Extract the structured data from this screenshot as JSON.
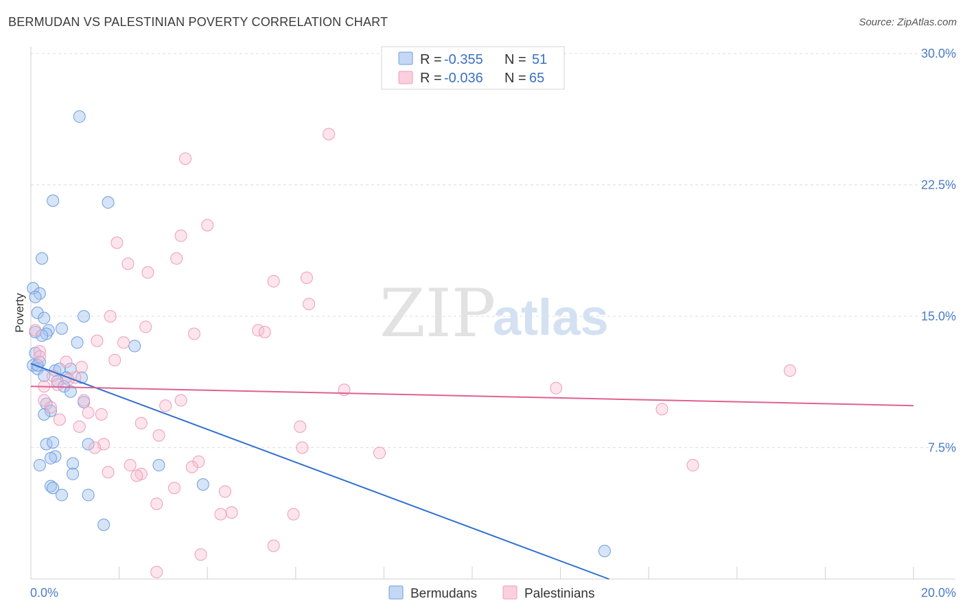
{
  "title": "BERMUDAN VS PALESTINIAN POVERTY CORRELATION CHART",
  "source": "Source: ZipAtlas.com",
  "watermark": {
    "part1": "ZIP",
    "part2": "atlas"
  },
  "legend": {
    "r_label": "R =",
    "n_label": "N =",
    "rows": [
      {
        "r": "-0.355",
        "n": "51",
        "color": "#6c9de0"
      },
      {
        "r": "-0.036",
        "n": "65",
        "color": "#f09ab8"
      }
    ]
  },
  "chart_data": {
    "type": "scatter",
    "title": "BERMUDAN VS PALESTINIAN POVERTY CORRELATION CHART",
    "ylabel": "Poverty",
    "xlabel": "",
    "xlim": [
      0,
      20
    ],
    "ylim": [
      0,
      30
    ],
    "x_tick_labels": [
      "0.0%",
      "20.0%"
    ],
    "y_ticks": [
      7.5,
      15.0,
      22.5,
      30.0
    ],
    "y_tick_labels": [
      "7.5%",
      "15.0%",
      "22.5%",
      "30.0%"
    ],
    "grid": "horizontal dashed",
    "legend_position": "top-center",
    "series": [
      {
        "name": "Bermudans",
        "color": "#6c9de0",
        "trend": {
          "x": [
            0.0,
            13.1
          ],
          "y": [
            12.3,
            0.0
          ]
        },
        "points": [
          [
            1.1,
            26.4
          ],
          [
            0.5,
            21.6
          ],
          [
            1.75,
            21.5
          ],
          [
            0.25,
            18.3
          ],
          [
            0.05,
            16.6
          ],
          [
            0.2,
            16.3
          ],
          [
            0.1,
            16.1
          ],
          [
            0.15,
            15.2
          ],
          [
            0.3,
            14.9
          ],
          [
            1.2,
            15.0
          ],
          [
            0.4,
            14.2
          ],
          [
            0.7,
            14.3
          ],
          [
            0.1,
            14.1
          ],
          [
            0.35,
            14.0
          ],
          [
            0.25,
            13.9
          ],
          [
            1.05,
            13.5
          ],
          [
            2.35,
            13.3
          ],
          [
            0.1,
            12.9
          ],
          [
            0.2,
            12.4
          ],
          [
            0.05,
            12.2
          ],
          [
            0.15,
            12.0
          ],
          [
            0.55,
            11.9
          ],
          [
            0.65,
            12.0
          ],
          [
            0.9,
            12.0
          ],
          [
            0.3,
            11.6
          ],
          [
            0.8,
            11.5
          ],
          [
            1.15,
            11.5
          ],
          [
            0.6,
            11.3
          ],
          [
            0.75,
            11.0
          ],
          [
            0.9,
            10.7
          ],
          [
            1.2,
            10.1
          ],
          [
            0.35,
            10.0
          ],
          [
            0.45,
            9.6
          ],
          [
            0.3,
            9.4
          ],
          [
            1.3,
            7.7
          ],
          [
            0.35,
            7.7
          ],
          [
            0.5,
            7.8
          ],
          [
            0.55,
            7.0
          ],
          [
            0.45,
            6.9
          ],
          [
            0.2,
            6.5
          ],
          [
            2.9,
            6.5
          ],
          [
            0.95,
            6.6
          ],
          [
            0.95,
            6.0
          ],
          [
            0.45,
            5.3
          ],
          [
            0.5,
            5.2
          ],
          [
            3.9,
            5.4
          ],
          [
            0.7,
            4.8
          ],
          [
            1.3,
            4.8
          ],
          [
            1.65,
            3.1
          ],
          [
            13.0,
            1.6
          ],
          [
            0.15,
            12.2
          ]
        ]
      },
      {
        "name": "Palestinians",
        "color": "#f09ab8",
        "trend": {
          "x": [
            0.0,
            20.0
          ],
          "y": [
            11.0,
            9.9
          ]
        },
        "points": [
          [
            6.75,
            25.4
          ],
          [
            3.5,
            24.0
          ],
          [
            4.0,
            20.2
          ],
          [
            3.4,
            19.6
          ],
          [
            1.95,
            19.2
          ],
          [
            3.3,
            18.3
          ],
          [
            2.2,
            18.0
          ],
          [
            2.65,
            17.5
          ],
          [
            6.25,
            17.2
          ],
          [
            5.5,
            17.0
          ],
          [
            6.3,
            15.7
          ],
          [
            1.8,
            15.0
          ],
          [
            2.6,
            14.4
          ],
          [
            5.15,
            14.2
          ],
          [
            5.3,
            14.1
          ],
          [
            3.7,
            14.0
          ],
          [
            0.1,
            14.2
          ],
          [
            1.5,
            13.6
          ],
          [
            2.1,
            13.5
          ],
          [
            0.2,
            13.0
          ],
          [
            1.9,
            12.5
          ],
          [
            0.8,
            12.4
          ],
          [
            1.15,
            12.1
          ],
          [
            0.2,
            12.7
          ],
          [
            0.5,
            11.6
          ],
          [
            1.0,
            11.5
          ],
          [
            0.85,
            11.4
          ],
          [
            0.6,
            11.1
          ],
          [
            0.3,
            11.0
          ],
          [
            17.2,
            11.9
          ],
          [
            7.1,
            10.8
          ],
          [
            11.9,
            10.9
          ],
          [
            0.3,
            10.2
          ],
          [
            1.2,
            10.2
          ],
          [
            3.4,
            10.2
          ],
          [
            3.05,
            9.9
          ],
          [
            0.45,
            9.8
          ],
          [
            1.3,
            9.5
          ],
          [
            1.6,
            9.4
          ],
          [
            0.65,
            9.1
          ],
          [
            14.3,
            9.7
          ],
          [
            2.5,
            8.9
          ],
          [
            1.1,
            8.7
          ],
          [
            6.1,
            8.7
          ],
          [
            2.9,
            8.2
          ],
          [
            1.65,
            7.7
          ],
          [
            1.45,
            7.5
          ],
          [
            6.15,
            7.5
          ],
          [
            7.9,
            7.2
          ],
          [
            3.8,
            6.7
          ],
          [
            15.0,
            6.5
          ],
          [
            2.25,
            6.5
          ],
          [
            3.65,
            6.4
          ],
          [
            1.75,
            6.1
          ],
          [
            2.5,
            6.0
          ],
          [
            2.4,
            5.9
          ],
          [
            3.25,
            5.2
          ],
          [
            4.4,
            5.0
          ],
          [
            2.85,
            4.3
          ],
          [
            4.55,
            3.8
          ],
          [
            4.3,
            3.7
          ],
          [
            5.95,
            3.7
          ],
          [
            5.5,
            1.9
          ],
          [
            3.85,
            1.4
          ],
          [
            2.85,
            0.4
          ]
        ]
      }
    ]
  }
}
